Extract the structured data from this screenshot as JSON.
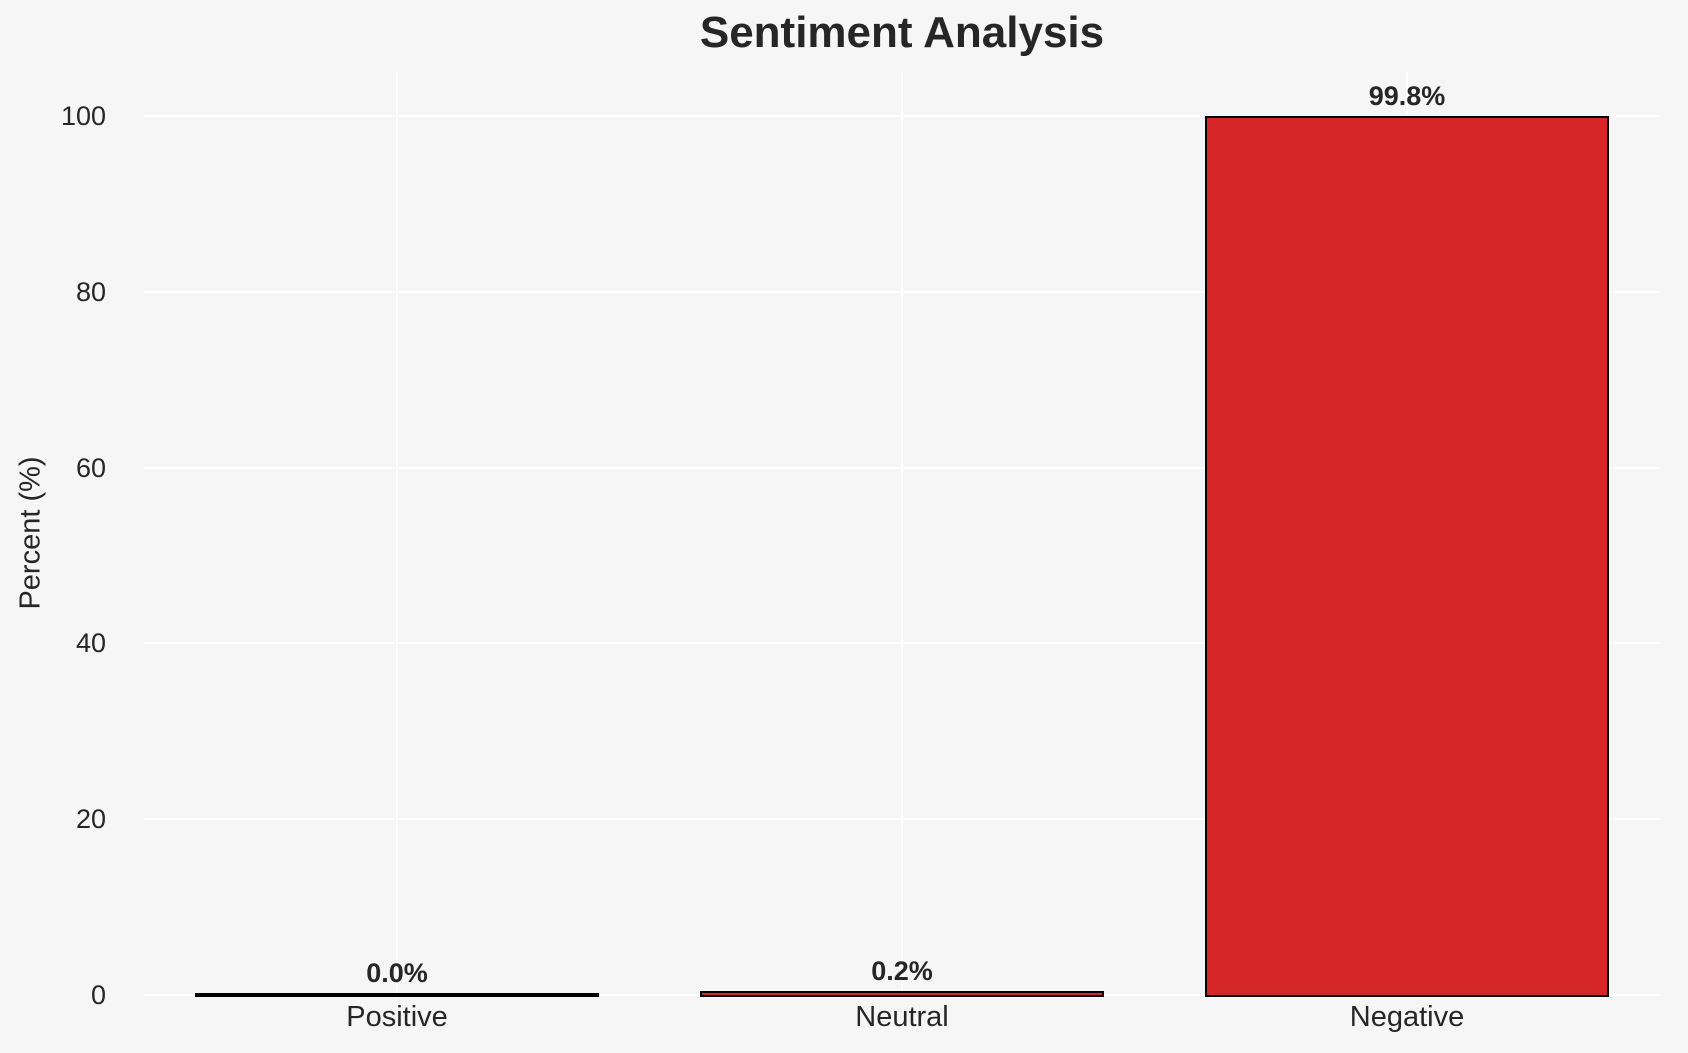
{
  "chart_data": {
    "type": "bar",
    "title": "Sentiment Analysis",
    "xlabel": "",
    "ylabel": "Percent (%)",
    "categories": [
      "Positive",
      "Neutral",
      "Negative"
    ],
    "values": [
      0.0,
      0.2,
      99.8
    ],
    "value_labels": [
      "0.0%",
      "0.2%",
      "99.8%"
    ],
    "yticks": [
      0,
      20,
      40,
      60,
      80,
      100
    ],
    "ylim": [
      0,
      105
    ],
    "grid": true,
    "legend_position": "none",
    "colors": {
      "bar_fill": "#d62728",
      "bar_edge": "#000000",
      "background": "#f6f6f6",
      "gridline": "#ffffff",
      "text": "#262626"
    }
  }
}
